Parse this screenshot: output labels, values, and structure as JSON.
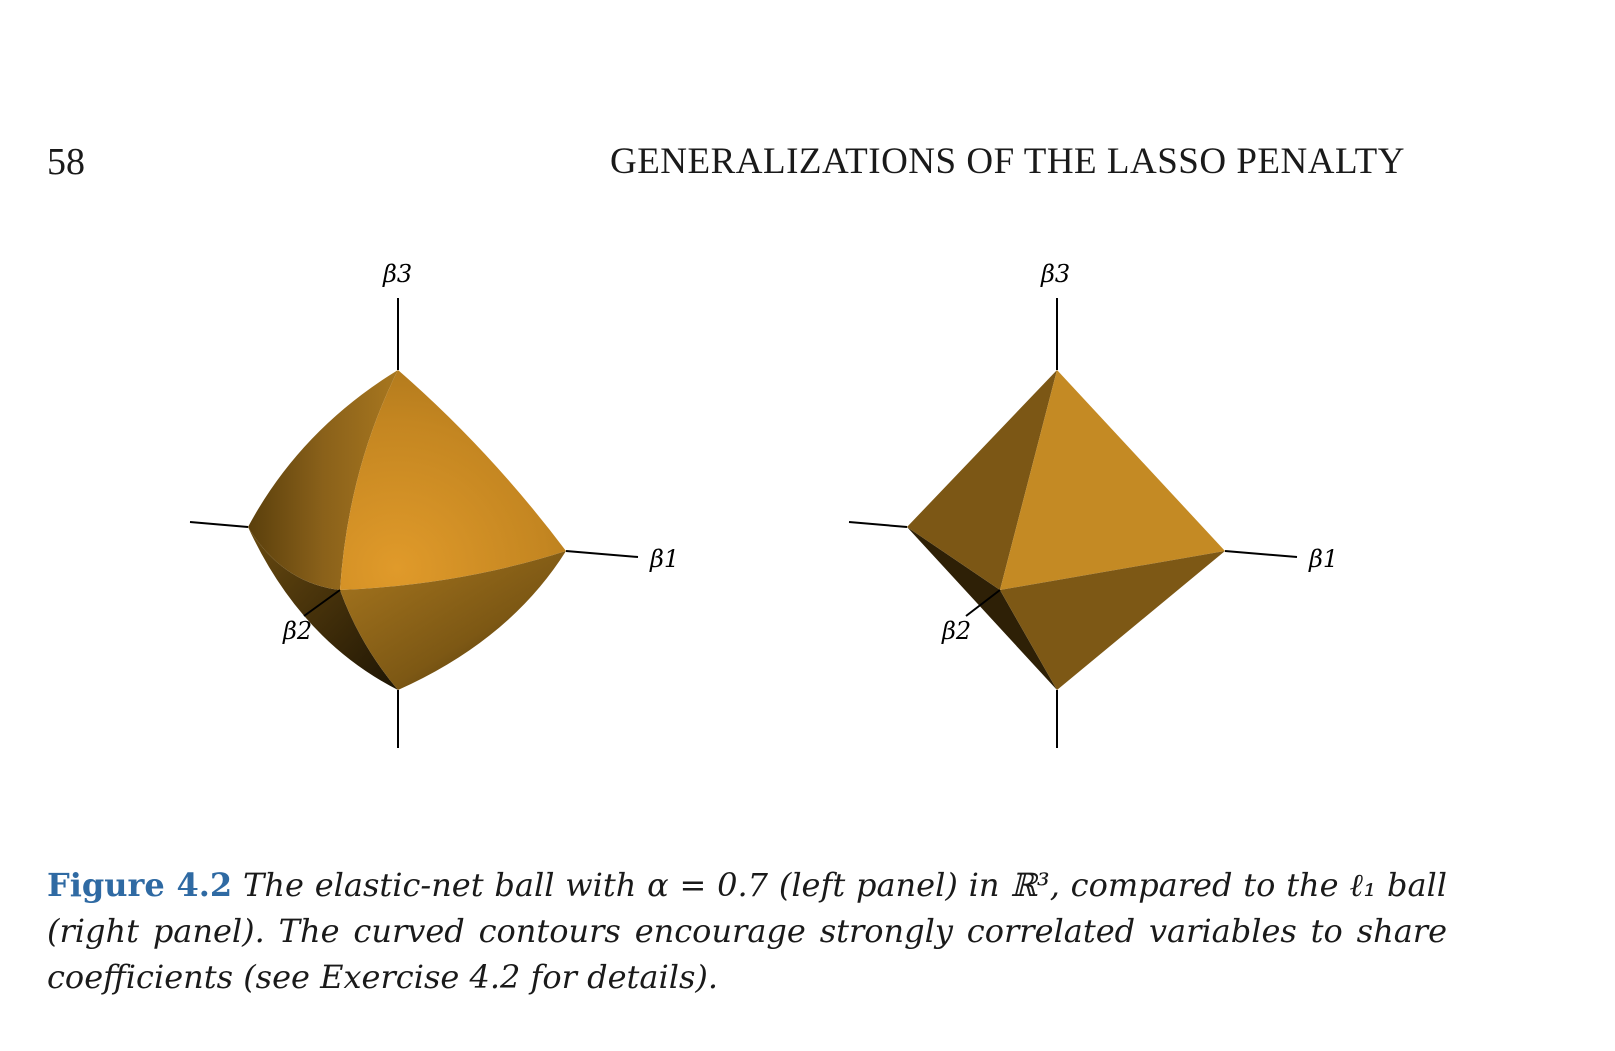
{
  "header": {
    "page_number": "58",
    "running_title": "GENERALIZATIONS OF THE LASSO PENALTY"
  },
  "figure": {
    "left_panel": {
      "axes": {
        "b3": "β3",
        "b1": "β1",
        "b2": "β2"
      }
    },
    "right_panel": {
      "axes": {
        "b3": "β3",
        "b1": "β1",
        "b2": "β2"
      }
    },
    "colors": {
      "face_light": "#d6962a",
      "face_mid": "#b97f1e",
      "face_dark": "#7a5512",
      "face_shadow": "#3d2b08"
    }
  },
  "caption": {
    "label": "Figure 4.2",
    "text": "The elastic-net ball with α = 0.7 (left panel) in ℝ³, compared to the ℓ₁ ball (right panel). The curved contours encourage strongly correlated variables to share coefficients (see Exercise 4.2 for details)."
  }
}
